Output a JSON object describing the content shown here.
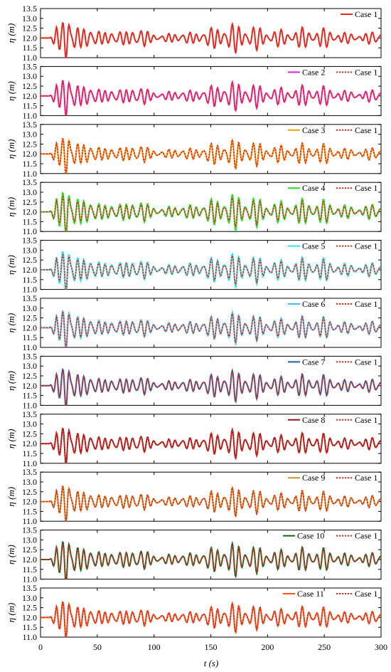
{
  "chart_data": {
    "type": "line",
    "y_ticks": [
      11.0,
      11.5,
      12.0,
      12.5,
      13.0,
      13.5
    ],
    "y_tick_labels": [
      "11.0",
      "11.5",
      "12.0",
      "12.5",
      "13.0",
      "13.5"
    ],
    "ylim": [
      11.0,
      13.5
    ],
    "x_ticks": [
      0,
      50,
      100,
      150,
      200,
      250,
      300
    ],
    "x_tick_labels": [
      "0",
      "50",
      "100",
      "150",
      "200",
      "250",
      "300"
    ],
    "xlim": [
      0,
      300
    ],
    "ylabel": "η (m)",
    "xlabel": "t (s)",
    "reference_series": {
      "name": "Case 1",
      "color": "#e8261c"
    },
    "panels": [
      {
        "series": [
          {
            "name": "Case 1",
            "color": "#e8261c",
            "amp_scale": 1.0
          }
        ]
      },
      {
        "series": [
          {
            "name": "Case 2",
            "color": "#e020d0",
            "amp_scale": 1.0
          },
          {
            "name": "Case 1",
            "color": "#e8261c"
          }
        ]
      },
      {
        "series": [
          {
            "name": "Case 3",
            "color": "#f2a200",
            "amp_scale": 1.0
          },
          {
            "name": "Case 1",
            "color": "#e8261c"
          }
        ]
      },
      {
        "series": [
          {
            "name": "Case 4",
            "color": "#22e022",
            "amp_scale": 1.25
          },
          {
            "name": "Case 1",
            "color": "#e8261c"
          }
        ]
      },
      {
        "series": [
          {
            "name": "Case 5",
            "color": "#22e8f2",
            "amp_scale": 1.18
          },
          {
            "name": "Case 1",
            "color": "#e8261c"
          }
        ]
      },
      {
        "series": [
          {
            "name": "Case 6",
            "color": "#38c4f2",
            "amp_scale": 1.1
          },
          {
            "name": "Case 1",
            "color": "#e8261c"
          }
        ]
      },
      {
        "series": [
          {
            "name": "Case 7",
            "color": "#1f5fb0",
            "amp_scale": 1.08
          },
          {
            "name": "Case 1",
            "color": "#e8261c"
          }
        ]
      },
      {
        "series": [
          {
            "name": "Case 8",
            "color": "#8b1a1a",
            "amp_scale": 1.0
          },
          {
            "name": "Case 1",
            "color": "#e8261c"
          }
        ]
      },
      {
        "series": [
          {
            "name": "Case 9",
            "color": "#c8941e",
            "amp_scale": 1.0
          },
          {
            "name": "Case 1",
            "color": "#e8261c"
          }
        ]
      },
      {
        "series": [
          {
            "name": "Case 10",
            "color": "#0f6b1c",
            "amp_scale": 1.15
          },
          {
            "name": "Case 1",
            "color": "#e8261c"
          }
        ]
      },
      {
        "series": [
          {
            "name": "Case 11",
            "color": "#f25a14",
            "amp_scale": 1.02
          },
          {
            "name": "Case 1",
            "color": "#e8261c"
          }
        ]
      }
    ],
    "grid": false,
    "legend_position": "top-right"
  }
}
